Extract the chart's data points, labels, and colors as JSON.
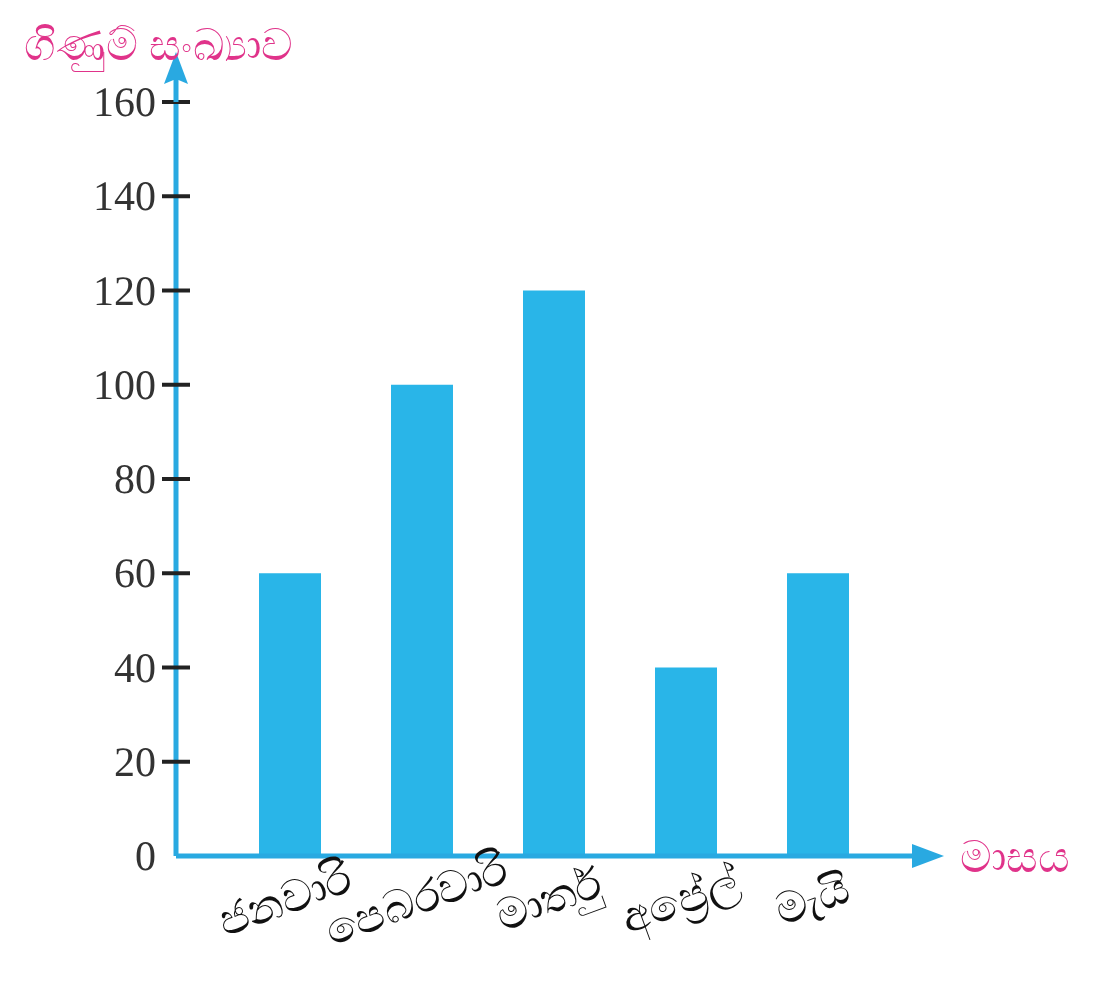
{
  "chart_data": {
    "type": "bar",
    "xlabel": "මාසය",
    "ylabel": "ගිණුම් සංඛ්‍යාව",
    "categories": [
      "ජනවාරි",
      "පෙබරවාරි",
      "මාර්තු",
      "අප්‍රේල්",
      "මැයි"
    ],
    "values": [
      60,
      100,
      120,
      40,
      60
    ],
    "color": "#29b5e8",
    "ylim": [
      0,
      160
    ],
    "yticks": [
      0,
      20,
      40,
      60,
      80,
      100,
      120,
      140,
      160
    ]
  }
}
